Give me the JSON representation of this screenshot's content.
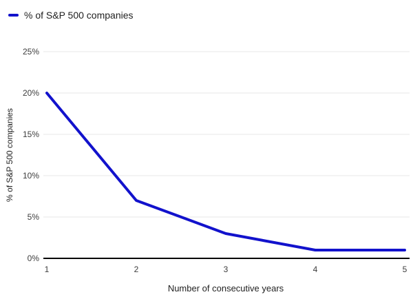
{
  "legend": {
    "label": "% of S&P 500 companies"
  },
  "axes": {
    "x_title": "Number of consecutive years",
    "y_title": "% of S&P 500 companies"
  },
  "chart_data": {
    "type": "line",
    "title": "",
    "x": [
      1,
      2,
      3,
      4,
      5
    ],
    "xtick_labels": [
      "1",
      "2",
      "3",
      "4",
      "5"
    ],
    "ytick_labels": [
      "0%",
      "5%",
      "10%",
      "15%",
      "20%",
      "25%"
    ],
    "ytick_values": [
      0,
      5,
      10,
      15,
      20,
      25
    ],
    "ylim": [
      0,
      25
    ],
    "series": [
      {
        "name": "% of S&P 500 companies",
        "values": [
          20,
          7,
          3,
          1,
          1
        ]
      }
    ],
    "xlabel": "Number of consecutive years",
    "ylabel": "% of S&P 500 companies",
    "grid": true,
    "legend_position": "top-left",
    "colors": {
      "line": "#1212cc",
      "grid": "#e7e7e7",
      "axis": "#000000",
      "tick_text": "#3c3c3c"
    }
  }
}
